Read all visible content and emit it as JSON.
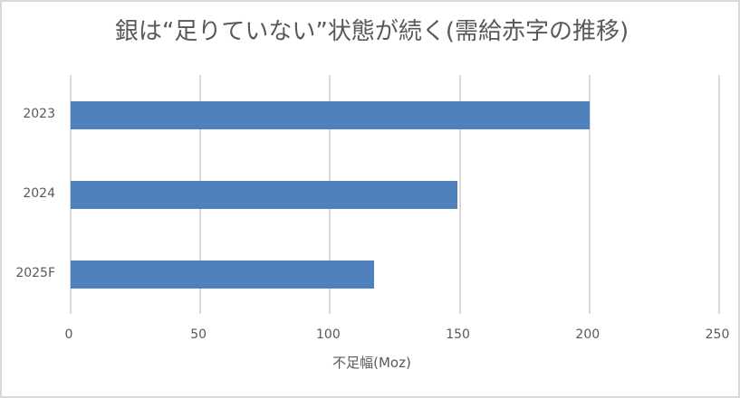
{
  "chart_data": {
    "type": "bar",
    "orientation": "horizontal",
    "title": "銀は“足りていない”状態が続く(需給赤字の推移)",
    "xlabel": "不足幅(Moz)",
    "ylabel": "",
    "categories": [
      "2023",
      "2024",
      "2025F"
    ],
    "values": [
      200,
      149,
      117
    ],
    "xlim": [
      0,
      250
    ],
    "x_ticks": [
      "0",
      "50",
      "100",
      "150",
      "200",
      "250"
    ],
    "grid": "vertical gridlines on",
    "legend": "none",
    "bar_color": "#4f81bd"
  }
}
